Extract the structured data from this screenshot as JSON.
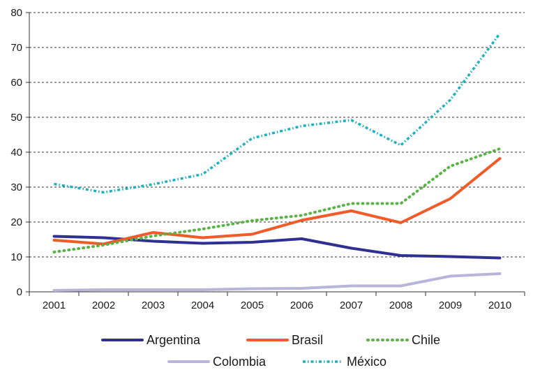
{
  "chart_data": {
    "type": "line",
    "title": "",
    "xlabel": "",
    "ylabel": "",
    "categories": [
      "2001",
      "2002",
      "2003",
      "2004",
      "2005",
      "2006",
      "2007",
      "2008",
      "2009",
      "2010"
    ],
    "ylim": [
      0,
      80
    ],
    "yticks": [
      0,
      10,
      20,
      30,
      40,
      50,
      60,
      70,
      80
    ],
    "grid": "horizontal dashed",
    "legend_position": "bottom",
    "series": [
      {
        "name": "Argentina",
        "color": "#2e3192",
        "style": "solid",
        "values": [
          15.9,
          15.5,
          14.5,
          13.9,
          14.2,
          15.2,
          12.5,
          10.4,
          10.1,
          9.7
        ]
      },
      {
        "name": "Brasil",
        "color": "#f15a29",
        "style": "solid",
        "values": [
          14.8,
          13.7,
          17.0,
          15.5,
          16.5,
          20.5,
          23.2,
          19.8,
          26.7,
          38.2
        ]
      },
      {
        "name": "Chile",
        "color": "#5ab345",
        "style": "dotted",
        "values": [
          11.4,
          13.4,
          16.0,
          18.0,
          20.4,
          21.9,
          25.3,
          25.3,
          36.0,
          41.0
        ]
      },
      {
        "name": "Colombia",
        "color": "#b8b5d8",
        "style": "solid",
        "values": [
          0.4,
          0.6,
          0.6,
          0.6,
          0.9,
          1.0,
          1.7,
          1.7,
          4.5,
          5.2
        ]
      },
      {
        "name": "México",
        "color": "#19b1c4",
        "style": "dash-dot",
        "values": [
          30.9,
          28.5,
          30.8,
          33.7,
          44.0,
          47.5,
          49.2,
          42.0,
          55.0,
          74.0
        ]
      }
    ]
  }
}
